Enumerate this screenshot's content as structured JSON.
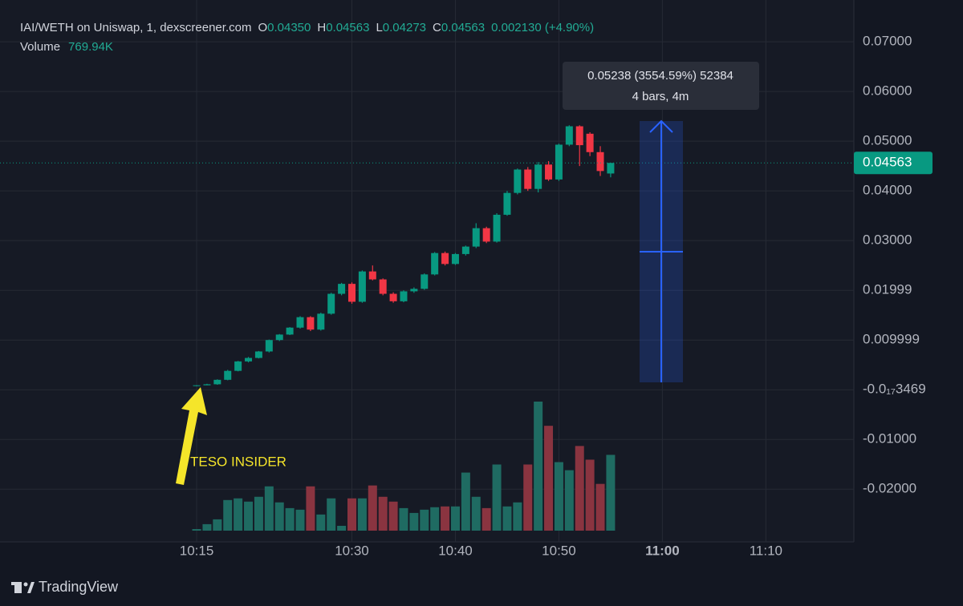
{
  "chart_data": {
    "type": "candlestick",
    "header": {
      "title": "IAI/WETH on Uniswap, 1, dexscreener.com",
      "items": [
        {
          "label": "O",
          "value": "0.04350"
        },
        {
          "label": "H",
          "value": "0.04563"
        },
        {
          "label": "L",
          "value": "0.04273"
        },
        {
          "label": "C",
          "value": "0.04563"
        }
      ],
      "change": "0.002130 (+4.90%)",
      "volume_label": "Volume",
      "volume_value": "769.94K"
    },
    "x": [
      615,
      616,
      617,
      618,
      619,
      620,
      621,
      622,
      623,
      624,
      625,
      626,
      627,
      628,
      629,
      630,
      631,
      632,
      633,
      634,
      635,
      636,
      637,
      638,
      639,
      640,
      641,
      642,
      643,
      644,
      645,
      646,
      647,
      648,
      649,
      650,
      651,
      652,
      653,
      654,
      655
    ],
    "open": [
      0.0008,
      0.0009,
      0.0011,
      0.002,
      0.0038,
      0.0057,
      0.0064,
      0.0077,
      0.01,
      0.0111,
      0.0125,
      0.0146,
      0.0121,
      0.0153,
      0.0193,
      0.0213,
      0.0177,
      0.0238,
      0.0222,
      0.0193,
      0.0178,
      0.0198,
      0.0203,
      0.0232,
      0.0275,
      0.0253,
      0.0273,
      0.0288,
      0.0325,
      0.0298,
      0.0352,
      0.0396,
      0.0443,
      0.0404,
      0.0453,
      0.0423,
      0.0493,
      0.053,
      0.0515,
      0.0478,
      0.0435
    ],
    "high": [
      0.0009,
      0.0012,
      0.0021,
      0.004,
      0.0058,
      0.0066,
      0.0078,
      0.0101,
      0.0112,
      0.0126,
      0.0148,
      0.0148,
      0.0155,
      0.0195,
      0.0215,
      0.0216,
      0.024,
      0.025,
      0.0224,
      0.0196,
      0.02,
      0.0206,
      0.0234,
      0.0277,
      0.0278,
      0.0275,
      0.029,
      0.0335,
      0.0328,
      0.0355,
      0.04,
      0.0445,
      0.0448,
      0.0458,
      0.046,
      0.0495,
      0.0532,
      0.0532,
      0.0518,
      0.049,
      0.04563
    ],
    "low": [
      0.0007,
      0.0009,
      0.001,
      0.0019,
      0.0037,
      0.0055,
      0.0063,
      0.0075,
      0.0098,
      0.011,
      0.0123,
      0.0118,
      0.0119,
      0.0151,
      0.019,
      0.0173,
      0.0175,
      0.022,
      0.019,
      0.0175,
      0.0176,
      0.0195,
      0.0201,
      0.023,
      0.025,
      0.0251,
      0.027,
      0.0285,
      0.0295,
      0.0296,
      0.035,
      0.0393,
      0.04,
      0.0397,
      0.042,
      0.042,
      0.049,
      0.045,
      0.047,
      0.043,
      0.04273
    ],
    "close": [
      0.0009,
      0.0011,
      0.002,
      0.0038,
      0.0057,
      0.0064,
      0.0077,
      0.01,
      0.0111,
      0.0125,
      0.0146,
      0.0121,
      0.0153,
      0.0193,
      0.0213,
      0.0177,
      0.0238,
      0.0222,
      0.0193,
      0.0178,
      0.0198,
      0.0203,
      0.0232,
      0.0275,
      0.0253,
      0.0273,
      0.0288,
      0.0325,
      0.0298,
      0.0352,
      0.0396,
      0.0443,
      0.0404,
      0.0453,
      0.0423,
      0.0493,
      0.053,
      0.0492,
      0.0478,
      0.044,
      0.04563
    ],
    "volume": [
      16000,
      66000,
      115000,
      311000,
      328000,
      295000,
      344000,
      450000,
      287000,
      229000,
      213000,
      450000,
      164000,
      328000,
      49000,
      328000,
      328000,
      459000,
      344000,
      295000,
      229000,
      180000,
      213000,
      238000,
      246000,
      246000,
      590000,
      344000,
      229000,
      672000,
      246000,
      287000,
      672000,
      1311000,
      1065000,
      696000,
      614000,
      860000,
      721000,
      475000,
      769940
    ],
    "up_color": "#089981",
    "down_color": "#f23645",
    "volume_up_color": "#1f6b62",
    "volume_down_color": "#8a3440",
    "xlim": [
      596,
      678.5
    ],
    "xticks": [
      {
        "value": 615,
        "label": "10:15"
      },
      {
        "value": 630,
        "label": "10:30"
      },
      {
        "value": 640,
        "label": "10:40"
      },
      {
        "value": 650,
        "label": "10:50"
      },
      {
        "value": 660,
        "label": "11:00"
      },
      {
        "value": 670,
        "label": "11:10"
      }
    ],
    "ylim": [
      -0.0306,
      0.0784
    ],
    "yticks": [
      {
        "value": 0.07,
        "label": "0.07000"
      },
      {
        "value": 0.06,
        "label": "0.06000"
      },
      {
        "value": 0.05,
        "label": "0.05000"
      },
      {
        "value": 0.04,
        "label": "0.04000"
      },
      {
        "value": 0.03,
        "label": "0.03000"
      },
      0.01999,
      0.009999,
      {
        "value": -3.469e-18,
        "label": "-0.0₁₇3469"
      },
      {
        "value": -0.01,
        "label": "-0.01000"
      },
      {
        "value": -0.02,
        "label": "-0.02000"
      }
    ],
    "grid": true,
    "measure": {
      "line1": "0.05238 (3554.59%) 52384",
      "line2": "4 bars, 4m"
    },
    "annotation": "TESO INSIDER",
    "brand": "TradingView"
  }
}
